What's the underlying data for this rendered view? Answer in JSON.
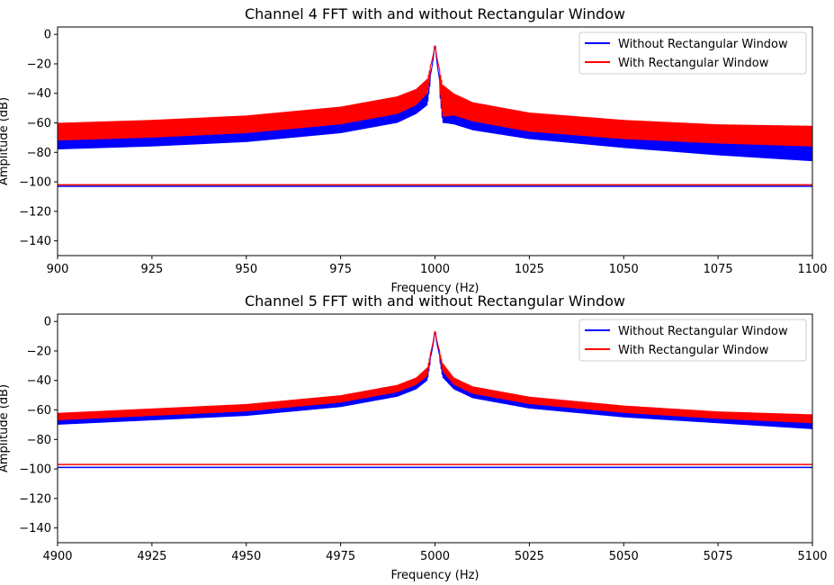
{
  "chart_data": [
    {
      "type": "line",
      "title": "Channel 4 FFT with and without Rectangular Window",
      "xlabel": "Frequency (Hz)",
      "ylabel": "Amplitude (dB)",
      "xlim": [
        900,
        1100
      ],
      "ylim": [
        -150,
        5
      ],
      "x_ticks": [
        900,
        925,
        950,
        975,
        1000,
        1025,
        1050,
        1075,
        1100
      ],
      "y_ticks": [
        0,
        -20,
        -40,
        -60,
        -80,
        -100,
        -120,
        -140
      ],
      "grid": false,
      "legend": "top-right",
      "peak_x": 1000,
      "series": [
        {
          "name": "Without Rectangular Window",
          "color": "#0000ff",
          "peak": -8,
          "x": [
            900,
            925,
            950,
            975,
            990,
            995,
            998,
            1000,
            1002,
            1005,
            1010,
            1025,
            1050,
            1075,
            1100
          ],
          "upper": [
            -69,
            -67,
            -64,
            -58,
            -51,
            -46,
            -40,
            -8,
            -45,
            -50,
            -54,
            -61,
            -67,
            -71,
            -72
          ],
          "lower": [
            -78,
            -76,
            -73,
            -67,
            -60,
            -54,
            -48,
            -8,
            -60,
            -61,
            -65,
            -71,
            -77,
            -82,
            -86
          ],
          "noise_floor": -103
        },
        {
          "name": "With Rectangular Window",
          "color": "#ff0000",
          "peak": -8,
          "x": [
            900,
            925,
            950,
            975,
            990,
            995,
            998,
            1000,
            1002,
            1005,
            1010,
            1025,
            1050,
            1075,
            1100
          ],
          "upper": [
            -60,
            -58,
            -55,
            -49,
            -42,
            -37,
            -30,
            -8,
            -34,
            -40,
            -46,
            -53,
            -58,
            -61,
            -62
          ],
          "lower": [
            -72,
            -70,
            -67,
            -61,
            -54,
            -48,
            -40,
            -8,
            -56,
            -55,
            -59,
            -66,
            -71,
            -74,
            -76
          ],
          "noise_floor": -102
        }
      ]
    },
    {
      "type": "line",
      "title": "Channel 5 FFT with and without Rectangular Window",
      "xlabel": "Frequency (Hz)",
      "ylabel": "Amplitude (dB)",
      "xlim": [
        4900,
        5100
      ],
      "ylim": [
        -150,
        5
      ],
      "x_ticks": [
        4900,
        4925,
        4950,
        4975,
        5000,
        5025,
        5050,
        5075,
        5100
      ],
      "y_ticks": [
        0,
        -20,
        -40,
        -60,
        -80,
        -100,
        -120,
        -140
      ],
      "grid": false,
      "legend": "top-right",
      "peak_x": 5000,
      "series": [
        {
          "name": "Without Rectangular Window",
          "color": "#0000ff",
          "peak": -8,
          "x": [
            4900,
            4925,
            4950,
            4975,
            4990,
            4995,
            4998,
            5000,
            5002,
            5005,
            5010,
            5025,
            5050,
            5075,
            5100
          ],
          "upper": [
            -66,
            -63,
            -60,
            -54,
            -47,
            -42,
            -35,
            -8,
            -32,
            -42,
            -48,
            -55,
            -61,
            -65,
            -67
          ],
          "lower": [
            -70,
            -67,
            -64,
            -58,
            -51,
            -46,
            -40,
            -8,
            -38,
            -46,
            -52,
            -59,
            -65,
            -69,
            -73
          ],
          "noise_floor": -99
        },
        {
          "name": "With Rectangular Window",
          "color": "#ff0000",
          "peak": -7,
          "x": [
            4900,
            4925,
            4950,
            4975,
            4990,
            4995,
            4998,
            5000,
            5002,
            5005,
            5010,
            5025,
            5050,
            5075,
            5100
          ],
          "upper": [
            -62,
            -59,
            -56,
            -50,
            -43,
            -38,
            -31,
            -7,
            -28,
            -38,
            -44,
            -51,
            -57,
            -61,
            -63
          ],
          "lower": [
            -67,
            -64,
            -61,
            -55,
            -48,
            -43,
            -37,
            -7,
            -34,
            -43,
            -49,
            -56,
            -62,
            -66,
            -69
          ],
          "noise_floor": -97
        }
      ]
    }
  ]
}
